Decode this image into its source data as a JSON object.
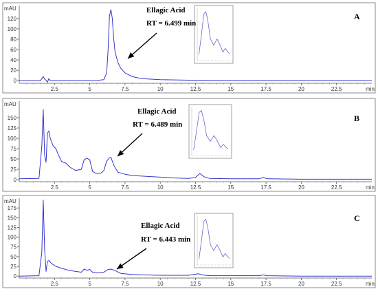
{
  "chart_data": [
    {
      "type": "line",
      "panel_label": "A",
      "y_unit": "mAU",
      "x_unit": "min",
      "xlim": [
        0,
        25
      ],
      "ylim": [
        -5,
        145
      ],
      "x_ticks": [
        2.5,
        5,
        7.5,
        10,
        12.5,
        15,
        17.5,
        20,
        22.5
      ],
      "x_tick_labels": [
        "2.5",
        "5",
        "7.5",
        "10",
        "12.5",
        "15",
        "17.5",
        "20",
        "22.5"
      ],
      "y_ticks": [
        0,
        20,
        40,
        60,
        80,
        100,
        120
      ],
      "y_tick_labels": [
        "0",
        "20",
        "40",
        "60",
        "80",
        "100",
        "120"
      ],
      "annotation": {
        "title": "Ellagic Acid",
        "rt_text": "RT = 6.499 min",
        "x": 6.5,
        "y": 10
      },
      "series": [
        {
          "color": "#3333cc",
          "x": [
            0,
            1.5,
            1.7,
            1.8,
            1.9,
            2.0,
            2.1,
            2.2,
            2.4,
            2.8,
            3.5,
            4.5,
            5.5,
            6.0,
            6.2,
            6.3,
            6.4,
            6.5,
            6.6,
            6.7,
            6.8,
            7.0,
            7.2,
            7.5,
            8.0,
            8.5,
            9.0,
            10.0,
            12.0,
            15.0,
            20.0,
            25.0
          ],
          "values": [
            0,
            0,
            8,
            3,
            1,
            -3,
            4,
            0,
            0,
            0,
            0,
            0.2,
            0.5,
            2,
            15,
            60,
            125,
            137,
            120,
            80,
            55,
            35,
            24,
            15,
            8,
            5,
            3.5,
            2,
            1,
            0.5,
            0.3,
            0.2
          ]
        }
      ]
    },
    {
      "type": "line",
      "panel_label": "B",
      "y_unit": "mAU",
      "x_unit": "min",
      "xlim": [
        0,
        25
      ],
      "ylim": [
        -5,
        190
      ],
      "x_ticks": [
        2.5,
        5,
        7.5,
        10,
        12.5,
        15,
        17.5,
        20,
        22.5
      ],
      "x_tick_labels": [
        "2.5",
        "5",
        "7.5",
        "10",
        "12.5",
        "15",
        "17.5",
        "20",
        "22.5"
      ],
      "y_ticks": [
        0,
        25,
        50,
        75,
        100,
        125,
        150
      ],
      "y_tick_labels": [
        "0",
        "25",
        "50",
        "75",
        "100",
        "125",
        "150"
      ],
      "annotation": {
        "title": "Ellagic Acid",
        "rt_text": "RT = 6.489 min",
        "x": 6.5,
        "y": 52
      },
      "series": [
        {
          "color": "#3333cc",
          "x": [
            0,
            1.4,
            1.6,
            1.7,
            1.8,
            1.9,
            2.0,
            2.1,
            2.2,
            2.4,
            2.6,
            2.8,
            3.0,
            3.3,
            3.6,
            4.0,
            4.4,
            4.6,
            4.8,
            5.0,
            5.2,
            5.4,
            5.6,
            5.8,
            6.0,
            6.2,
            6.4,
            6.5,
            6.7,
            7.0,
            7.5,
            8.0,
            9.0,
            10.0,
            11.0,
            12.0,
            12.5,
            12.8,
            13.1,
            13.5,
            15.0,
            17.0,
            17.3,
            17.6,
            20.0,
            25.0
          ],
          "values": [
            2,
            3,
            80,
            170,
            60,
            42,
            112,
            118,
            100,
            82,
            75,
            58,
            44,
            40,
            30,
            22,
            25,
            48,
            52,
            48,
            20,
            16,
            15,
            16,
            22,
            45,
            53,
            54,
            35,
            18,
            13,
            10,
            8,
            6,
            4,
            3,
            5,
            15,
            7,
            3,
            2,
            2,
            5,
            2,
            1,
            1
          ]
        }
      ]
    },
    {
      "type": "line",
      "panel_label": "C",
      "y_unit": "mAU",
      "x_unit": "min",
      "xlim": [
        0,
        25
      ],
      "ylim": [
        -5,
        200
      ],
      "x_ticks": [
        2.5,
        5,
        7.5,
        10,
        12.5,
        15,
        17.5,
        20,
        22.5
      ],
      "x_tick_labels": [
        "2.5",
        "5",
        "7.5",
        "10",
        "12.5",
        "15",
        "17.5",
        "20",
        "22.5"
      ],
      "y_ticks": [
        0,
        25,
        50,
        75,
        100,
        125,
        150,
        175
      ],
      "y_tick_labels": [
        "0",
        "25",
        "50",
        "75",
        "100",
        "125",
        "150",
        "175"
      ],
      "annotation": {
        "title": "Ellagic Acid",
        "rt_text": "RT = 6.443 min",
        "x": 6.45,
        "y": 18
      },
      "series": [
        {
          "color": "#3333cc",
          "x": [
            0,
            1.4,
            1.6,
            1.7,
            1.8,
            1.9,
            2.0,
            2.1,
            2.3,
            2.6,
            3.0,
            3.5,
            4.0,
            4.4,
            4.6,
            4.8,
            5.0,
            5.2,
            5.5,
            6.0,
            6.3,
            6.5,
            6.8,
            7.2,
            8.0,
            9.0,
            10.0,
            11.0,
            12.0,
            12.7,
            13.0,
            13.5,
            15.0,
            17.0,
            17.3,
            17.6,
            20.0,
            25.0
          ],
          "values": [
            0,
            1,
            60,
            195,
            70,
            12,
            38,
            40,
            32,
            25,
            20,
            15,
            12,
            10,
            18,
            15,
            17,
            10,
            8,
            10,
            17,
            18,
            14,
            7,
            4,
            3,
            2,
            2,
            2,
            6,
            3,
            1,
            1,
            1,
            3,
            1,
            0,
            0
          ]
        }
      ]
    }
  ]
}
